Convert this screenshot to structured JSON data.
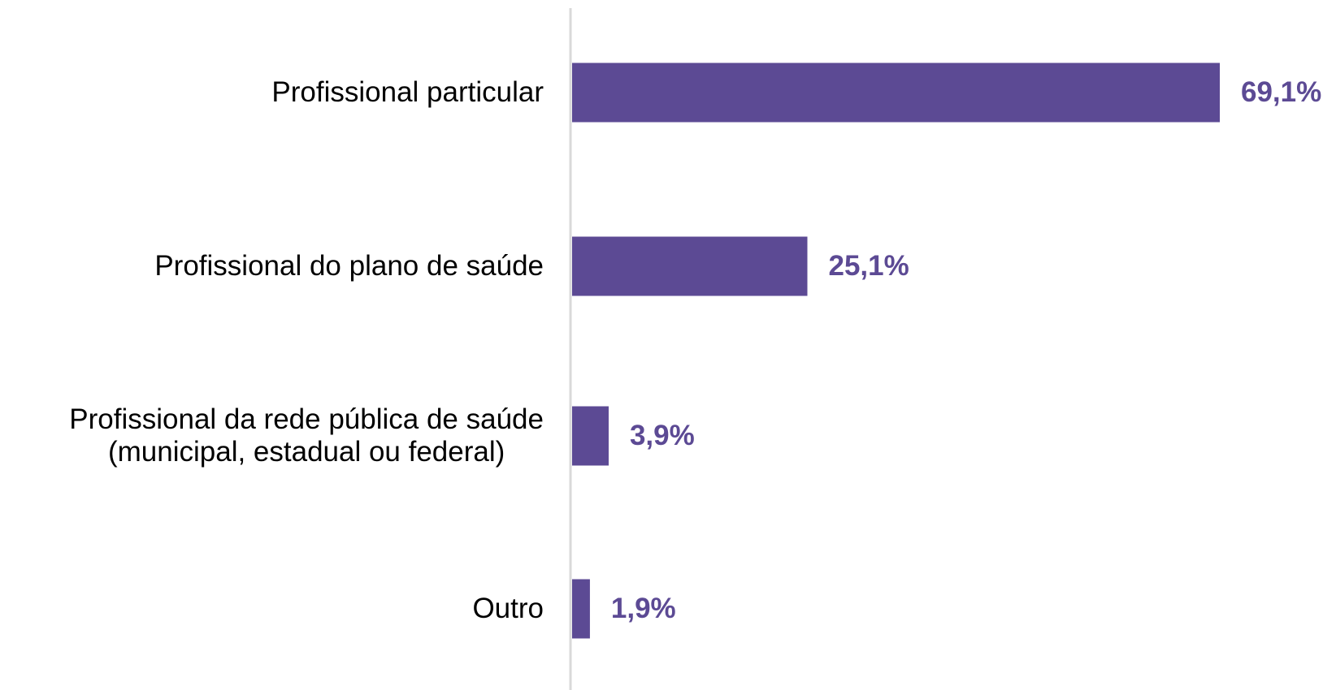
{
  "chart_data": {
    "type": "bar",
    "orientation": "horizontal",
    "categories": [
      "Profissional particular",
      "Profissional do plano de saúde",
      "Profissional da rede pública de saúde\n(municipal, estadual ou federal)",
      "Outro"
    ],
    "values": [
      69.1,
      25.1,
      3.9,
      1.9
    ],
    "value_labels": [
      "69,1%",
      "25,1%",
      "3,9%",
      "1,9%"
    ],
    "color": "#5c4a94"
  }
}
